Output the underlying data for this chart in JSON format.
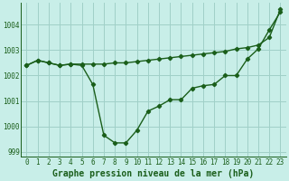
{
  "line1_x": [
    0,
    1,
    2,
    3,
    4,
    5,
    6,
    7,
    8,
    9,
    10,
    11,
    12,
    13,
    14,
    15,
    16,
    17,
    18,
    19,
    20,
    21,
    22,
    23
  ],
  "line1_y": [
    1002.4,
    1002.6,
    1002.5,
    1002.4,
    1002.45,
    1002.4,
    1001.65,
    999.65,
    999.35,
    999.35,
    999.85,
    1000.6,
    1000.8,
    1001.05,
    1001.05,
    1001.5,
    1001.6,
    1001.65,
    1002.0,
    1002.0,
    1002.65,
    1003.05,
    1003.8,
    1004.5
  ],
  "line2_x": [
    0,
    1,
    2,
    3,
    4,
    5,
    6,
    7,
    8,
    9,
    10,
    11,
    12,
    13,
    14,
    15,
    16,
    17,
    18,
    19,
    20,
    21,
    22,
    23
  ],
  "line2_y": [
    1002.4,
    1002.6,
    1002.5,
    1002.4,
    1002.45,
    1002.45,
    1002.45,
    1002.45,
    1002.5,
    1002.5,
    1002.55,
    1002.6,
    1002.65,
    1002.7,
    1002.75,
    1002.8,
    1002.85,
    1002.9,
    1002.95,
    1003.05,
    1003.1,
    1003.2,
    1003.5,
    1004.6
  ],
  "line_color": "#1a5e1a",
  "bg_color": "#c8eee8",
  "grid_color": "#a0d0c8",
  "xlabel": "Graphe pression niveau de la mer (hPa)",
  "ylim": [
    998.8,
    1004.85
  ],
  "xlim": [
    -0.5,
    23.5
  ],
  "yticks": [
    999,
    1000,
    1001,
    1002,
    1003,
    1004
  ],
  "xticks": [
    0,
    1,
    2,
    3,
    4,
    5,
    6,
    7,
    8,
    9,
    10,
    11,
    12,
    13,
    14,
    15,
    16,
    17,
    18,
    19,
    20,
    21,
    22,
    23
  ],
  "xtick_labels": [
    "0",
    "1",
    "2",
    "3",
    "4",
    "5",
    "6",
    "7",
    "8",
    "9",
    "10",
    "11",
    "12",
    "13",
    "14",
    "15",
    "16",
    "17",
    "18",
    "19",
    "20",
    "21",
    "22",
    "23"
  ],
  "marker": "D",
  "markersize": 2.2,
  "linewidth": 1.0,
  "xlabel_fontsize": 7.0,
  "tick_fontsize": 5.5
}
